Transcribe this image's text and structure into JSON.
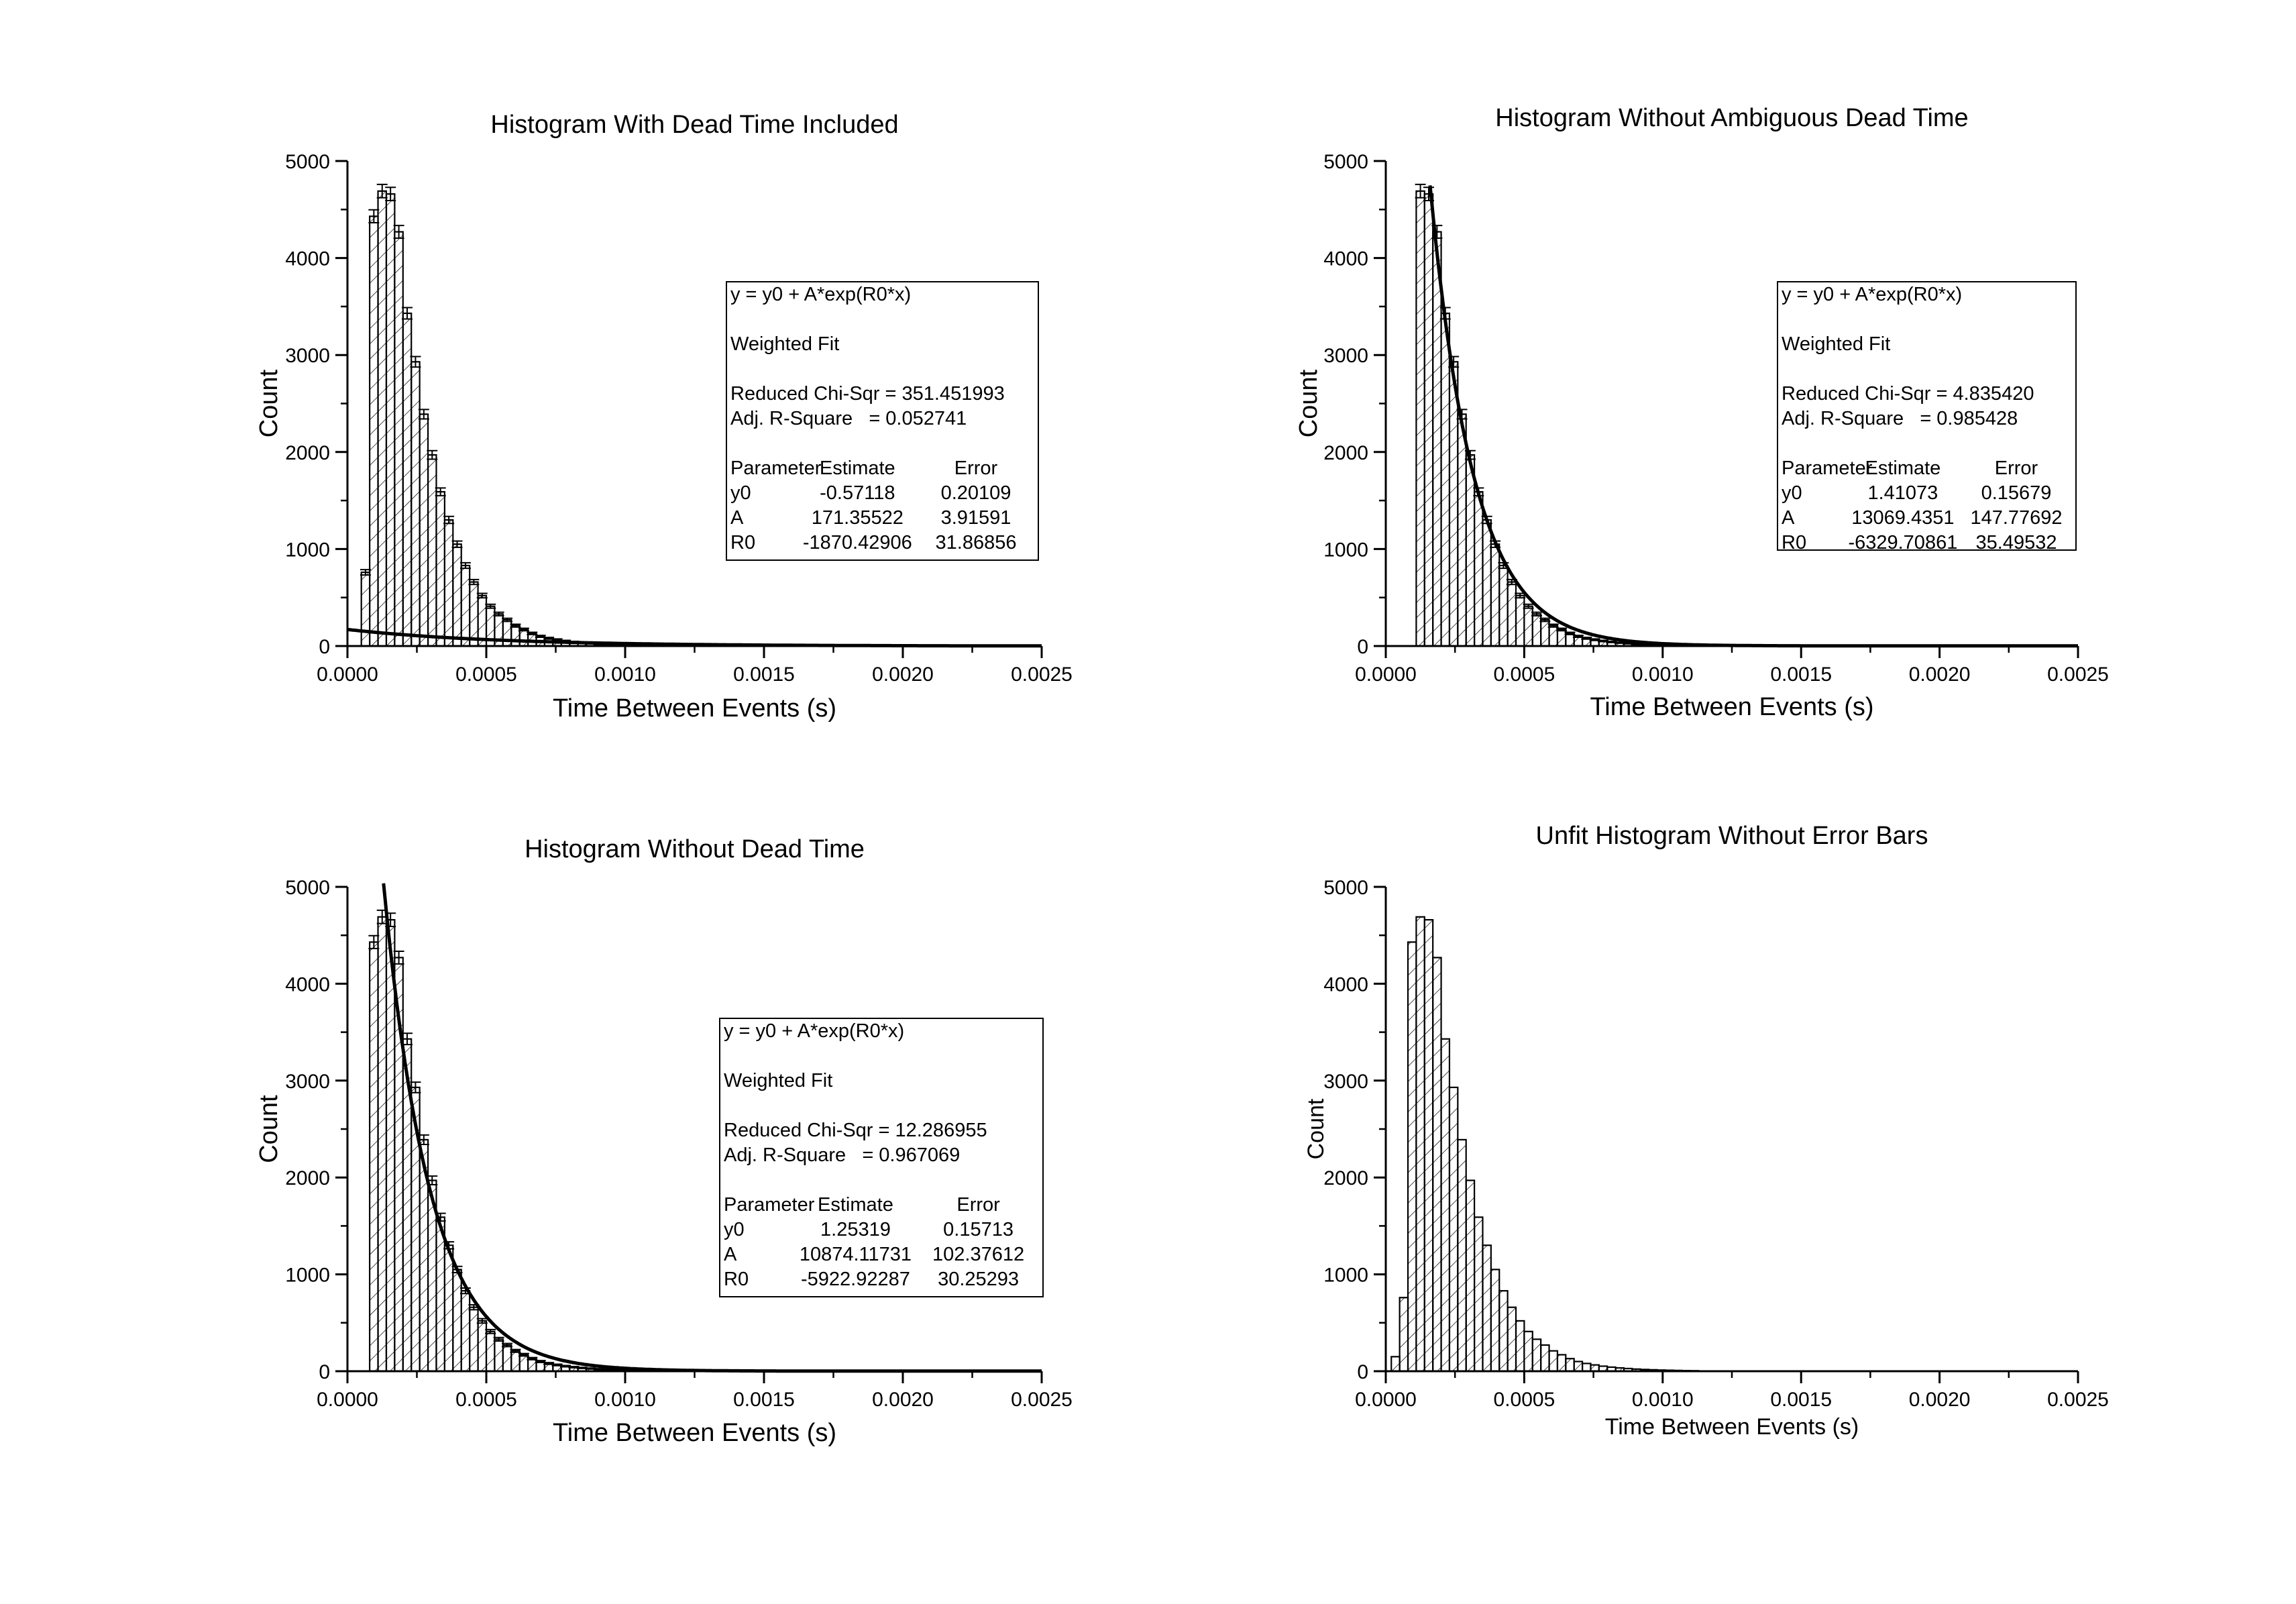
{
  "chart_data": [
    {
      "type": "bar",
      "title": "Histogram With Dead Time Included",
      "xlabel": "Time Between Events (s)",
      "ylabel": "Count",
      "xlim": [
        0,
        0.0025
      ],
      "ylim": [
        0,
        5000
      ],
      "x_ticks": [
        "0.0000",
        "0.0005",
        "0.0010",
        "0.0015",
        "0.0020",
        "0.0025"
      ],
      "y_ticks": [
        "0",
        "1000",
        "2000",
        "3000",
        "4000",
        "5000"
      ],
      "bin_start": 5e-05,
      "bin_width": 3e-05,
      "values": [
        760,
        4430,
        4690,
        4660,
        4270,
        3430,
        2930,
        2390,
        1970,
        1590,
        1300,
        1050,
        830,
        660,
        520,
        410,
        330,
        270,
        210,
        170,
        130,
        100,
        80,
        65,
        52,
        42,
        34,
        28,
        22,
        18,
        15,
        12,
        10,
        8,
        6,
        5
      ],
      "error_bars": true,
      "grid": false,
      "fit": {
        "y0": -0.57118,
        "A": 171.35522,
        "R0": -1870.42906,
        "x_from": 0.0,
        "x_to": 0.0025
      },
      "fit_box": {
        "equation": "y = y0 + A*exp(R0*x)",
        "method": "Weighted Fit",
        "chi": "Reduced Chi-Sqr = 351.451993",
        "r2": "Adj. R-Square   = 0.052741",
        "headers": [
          "Parameter",
          "Estimate",
          "Error"
        ],
        "rows": [
          [
            "y0",
            "-0.57118",
            "0.20109"
          ],
          [
            "A",
            "171.35522",
            "3.91591"
          ],
          [
            "R0",
            "-1870.42906",
            "31.86856"
          ]
        ]
      }
    },
    {
      "type": "bar",
      "title": "Histogram Without Ambiguous Dead Time",
      "xlabel": "Time Between Events (s)",
      "ylabel": "Count",
      "xlim": [
        0,
        0.0025
      ],
      "ylim": [
        0,
        5000
      ],
      "x_ticks": [
        "0.0000",
        "0.0005",
        "0.0010",
        "0.0015",
        "0.0020",
        "0.0025"
      ],
      "y_ticks": [
        "0",
        "1000",
        "2000",
        "3000",
        "4000",
        "5000"
      ],
      "bin_start": 0.00011,
      "bin_width": 3e-05,
      "values": [
        4690,
        4660,
        4270,
        3430,
        2930,
        2390,
        1970,
        1590,
        1300,
        1050,
        830,
        660,
        520,
        410,
        330,
        270,
        210,
        170,
        130,
        100,
        80,
        65,
        52,
        42,
        34,
        28,
        22,
        18,
        15,
        12,
        10,
        8,
        6,
        5
      ],
      "error_bars": true,
      "grid": false,
      "fit": {
        "y0": 1.41073,
        "A": 13069.4351,
        "R0": -6329.70861,
        "x_from": 0.00016,
        "x_to": 0.0025
      },
      "fit_box": {
        "equation": "y = y0 + A*exp(R0*x)",
        "method": "Weighted Fit",
        "chi": "Reduced Chi-Sqr = 4.835420",
        "r2": "Adj. R-Square   = 0.985428",
        "headers": [
          "Parameter",
          "Estimate",
          "Error"
        ],
        "rows": [
          [
            "y0",
            "1.41073",
            "0.15679"
          ],
          [
            "A",
            "13069.4351",
            "147.77692"
          ],
          [
            "R0",
            "-6329.70861",
            "35.49532"
          ]
        ]
      }
    },
    {
      "type": "bar",
      "title": "Histogram Without Dead Time",
      "xlabel": "Time Between Events (s)",
      "ylabel": "Count",
      "xlim": [
        0,
        0.0025
      ],
      "ylim": [
        0,
        5000
      ],
      "x_ticks": [
        "0.0000",
        "0.0005",
        "0.0010",
        "0.0015",
        "0.0020",
        "0.0025"
      ],
      "y_ticks": [
        "0",
        "1000",
        "2000",
        "3000",
        "4000",
        "5000"
      ],
      "bin_start": 8e-05,
      "bin_width": 3e-05,
      "values": [
        4430,
        4690,
        4660,
        4270,
        3430,
        2930,
        2390,
        1970,
        1590,
        1300,
        1050,
        830,
        660,
        520,
        410,
        330,
        270,
        210,
        170,
        130,
        100,
        80,
        65,
        52,
        42,
        34,
        28,
        22,
        18,
        15,
        12,
        10,
        8,
        6,
        5
      ],
      "error_bars": true,
      "grid": false,
      "fit": {
        "y0": 1.25319,
        "A": 10874.11731,
        "R0": -5922.92287,
        "x_from": 0.00013,
        "x_to": 0.0025
      },
      "fit_box": {
        "equation": "y = y0 + A*exp(R0*x)",
        "method": "Weighted Fit",
        "chi": "Reduced Chi-Sqr = 12.286955",
        "r2": "Adj. R-Square   = 0.967069",
        "headers": [
          "Parameter",
          "Estimate",
          "Error"
        ],
        "rows": [
          [
            "y0",
            "1.25319",
            "0.15713"
          ],
          [
            "A",
            "10874.11731",
            "102.37612"
          ],
          [
            "R0",
            "-5922.92287",
            "30.25293"
          ]
        ]
      }
    },
    {
      "type": "bar",
      "title": "Unfit Histogram Without Error Bars",
      "xlabel": "Time Between Events (s)",
      "ylabel": "Count",
      "xlim": [
        0,
        0.0025
      ],
      "ylim": [
        0,
        5000
      ],
      "x_ticks": [
        "0.0000",
        "0.0005",
        "0.0010",
        "0.0015",
        "0.0020",
        "0.0025"
      ],
      "y_ticks": [
        "0",
        "1000",
        "2000",
        "3000",
        "4000",
        "5000"
      ],
      "bin_start": 2e-05,
      "bin_width": 3e-05,
      "values": [
        150,
        760,
        4430,
        4690,
        4660,
        4270,
        3430,
        2930,
        2390,
        1970,
        1590,
        1300,
        1050,
        830,
        660,
        520,
        410,
        330,
        270,
        210,
        170,
        130,
        100,
        80,
        65,
        52,
        42,
        34,
        28,
        22,
        18,
        15,
        12,
        10,
        8,
        6,
        5
      ],
      "error_bars": false,
      "grid": false
    }
  ]
}
